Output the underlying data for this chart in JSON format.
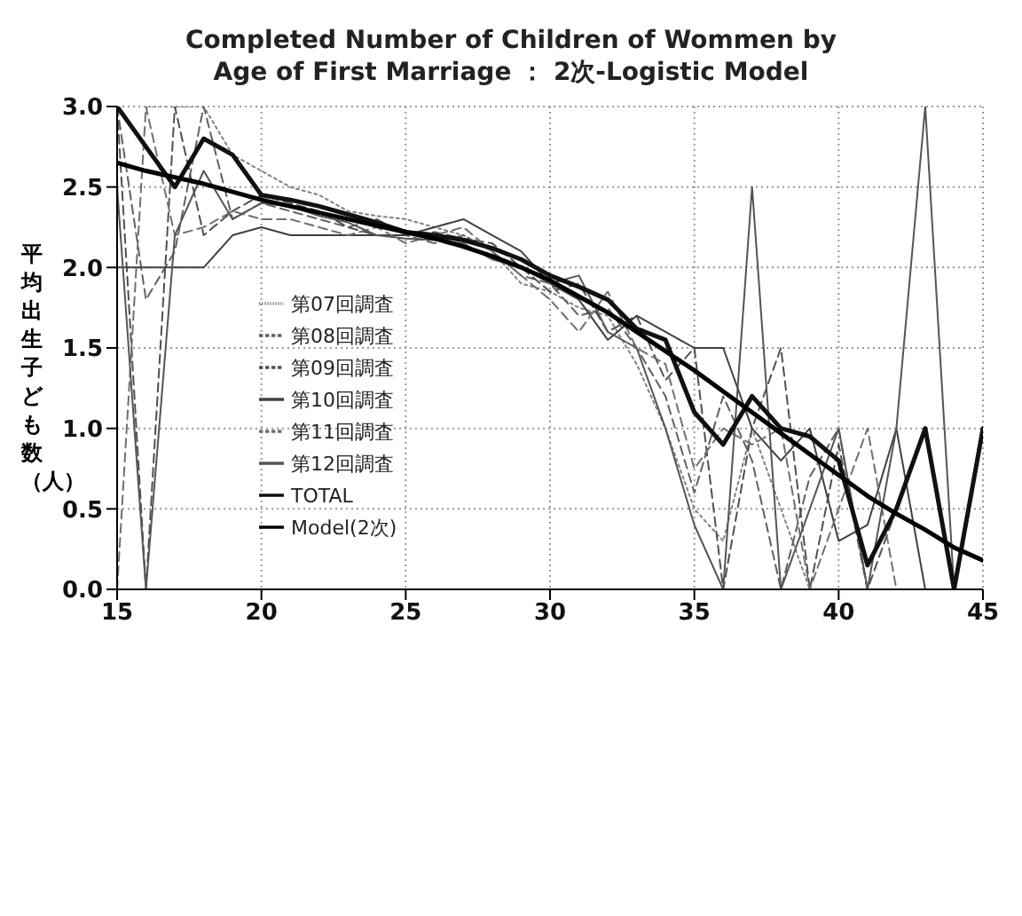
{
  "chart_data": {
    "type": "line",
    "title": "Completed Number of Children of Wommen by Age of First Marriage ： 2次-Logistic Model",
    "ylabel": "平均出生子ども数（人）",
    "x": [
      15,
      16,
      17,
      18,
      19,
      20,
      21,
      22,
      23,
      24,
      25,
      26,
      27,
      28,
      29,
      30,
      31,
      32,
      33,
      34,
      35,
      36,
      37,
      38,
      39,
      40,
      41,
      42,
      43,
      44,
      45
    ],
    "series": [
      {
        "name": "第07回調査",
        "color": "#808080",
        "line_style": "dotted",
        "values": [
          null,
          3.0,
          3.0,
          3.0,
          2.7,
          2.6,
          2.5,
          2.45,
          2.35,
          2.32,
          2.3,
          2.25,
          2.2,
          2.1,
          1.9,
          1.85,
          1.75,
          1.7,
          1.4,
          1.0,
          0.5,
          0.3,
          1.0,
          0.5,
          0.0,
          null,
          null,
          null,
          null,
          null,
          null
        ]
      },
      {
        "name": "第08回調査",
        "color": "#606060",
        "line_style": "dashed",
        "values": [
          3.0,
          1.8,
          2.1,
          3.0,
          2.3,
          2.4,
          2.35,
          2.3,
          2.25,
          2.3,
          2.2,
          2.15,
          2.2,
          2.1,
          1.95,
          1.9,
          1.7,
          1.75,
          1.5,
          1.2,
          0.6,
          1.2,
          0.8,
          0.0,
          0.7,
          1.0,
          0.0,
          null,
          null,
          null,
          null
        ]
      },
      {
        "name": "第09回調査",
        "color": "#505050",
        "line_style": "dashed",
        "values": [
          3.0,
          0.0,
          3.0,
          2.2,
          2.35,
          2.45,
          2.4,
          2.35,
          2.25,
          2.2,
          2.2,
          2.22,
          2.18,
          2.15,
          2.0,
          1.85,
          1.9,
          1.6,
          1.7,
          1.3,
          1.5,
          0.0,
          1.0,
          1.5,
          0.0,
          0.9,
          0.0,
          0.5,
          1.0,
          0.0,
          null
        ]
      },
      {
        "name": "第10回調査",
        "color": "#404040",
        "line_style": "solid",
        "values": [
          2.0,
          2.0,
          2.0,
          2.0,
          2.2,
          2.25,
          2.2,
          2.2,
          2.2,
          2.2,
          2.2,
          2.25,
          2.3,
          2.2,
          2.1,
          1.9,
          1.8,
          1.55,
          1.7,
          1.6,
          1.5,
          1.5,
          1.0,
          0.8,
          1.0,
          0.3,
          0.4,
          1.0,
          0.0,
          null,
          null
        ]
      },
      {
        "name": "第11回調査",
        "color": "#707070",
        "line_style": "dashed",
        "values": [
          0.0,
          3.0,
          2.2,
          2.25,
          2.35,
          2.3,
          2.3,
          2.25,
          2.2,
          2.25,
          2.15,
          2.2,
          2.25,
          2.1,
          1.95,
          1.8,
          1.6,
          1.85,
          1.5,
          1.4,
          0.75,
          1.0,
          0.9,
          1.0,
          0.0,
          0.5,
          1.0,
          0.0,
          null,
          null,
          null
        ]
      },
      {
        "name": "第12回調査",
        "color": "#555555",
        "line_style": "solid",
        "values": [
          2.5,
          0.0,
          2.2,
          2.6,
          2.3,
          2.4,
          2.38,
          2.32,
          2.28,
          2.2,
          2.18,
          2.17,
          2.15,
          2.05,
          2.0,
          1.9,
          1.95,
          1.6,
          1.5,
          1.0,
          0.4,
          0.0,
          2.5,
          0.0,
          0.5,
          1.0,
          0.0,
          1.0,
          3.0,
          0.0,
          null
        ]
      },
      {
        "name": "TOTAL",
        "color": "#111111",
        "line_style": "solid",
        "values": [
          3.0,
          2.75,
          2.5,
          2.8,
          2.7,
          2.45,
          2.42,
          2.38,
          2.33,
          2.28,
          2.22,
          2.2,
          2.17,
          2.12,
          2.05,
          1.95,
          1.88,
          1.8,
          1.62,
          1.55,
          1.1,
          0.9,
          1.2,
          1.0,
          0.95,
          0.8,
          0.15,
          0.5,
          1.0,
          0.0,
          1.0
        ]
      },
      {
        "name": "Model(2次)",
        "color": "#000000",
        "line_style": "solid",
        "values": [
          2.65,
          2.6,
          2.56,
          2.52,
          2.47,
          2.42,
          2.38,
          2.34,
          2.3,
          2.26,
          2.22,
          2.18,
          2.13,
          2.07,
          2.0,
          1.92,
          1.82,
          1.72,
          1.6,
          1.48,
          1.36,
          1.23,
          1.1,
          0.97,
          0.84,
          0.71,
          0.58,
          0.47,
          0.37,
          0.26,
          0.18
        ]
      }
    ],
    "xlim": [
      15,
      45
    ],
    "xticks": [
      15,
      20,
      25,
      30,
      35,
      40,
      45
    ],
    "ylim": [
      0,
      3
    ],
    "yticks": [
      {
        "value": 0,
        "label": "0.0"
      },
      0.5,
      {
        "value": 1,
        "label": "1.0"
      },
      1.5,
      {
        "value": 2,
        "label": "2.0"
      },
      2.5,
      {
        "value": 3,
        "label": "3.0"
      }
    ],
    "grid": true,
    "legend": "bottom left",
    "marker": "none"
  }
}
